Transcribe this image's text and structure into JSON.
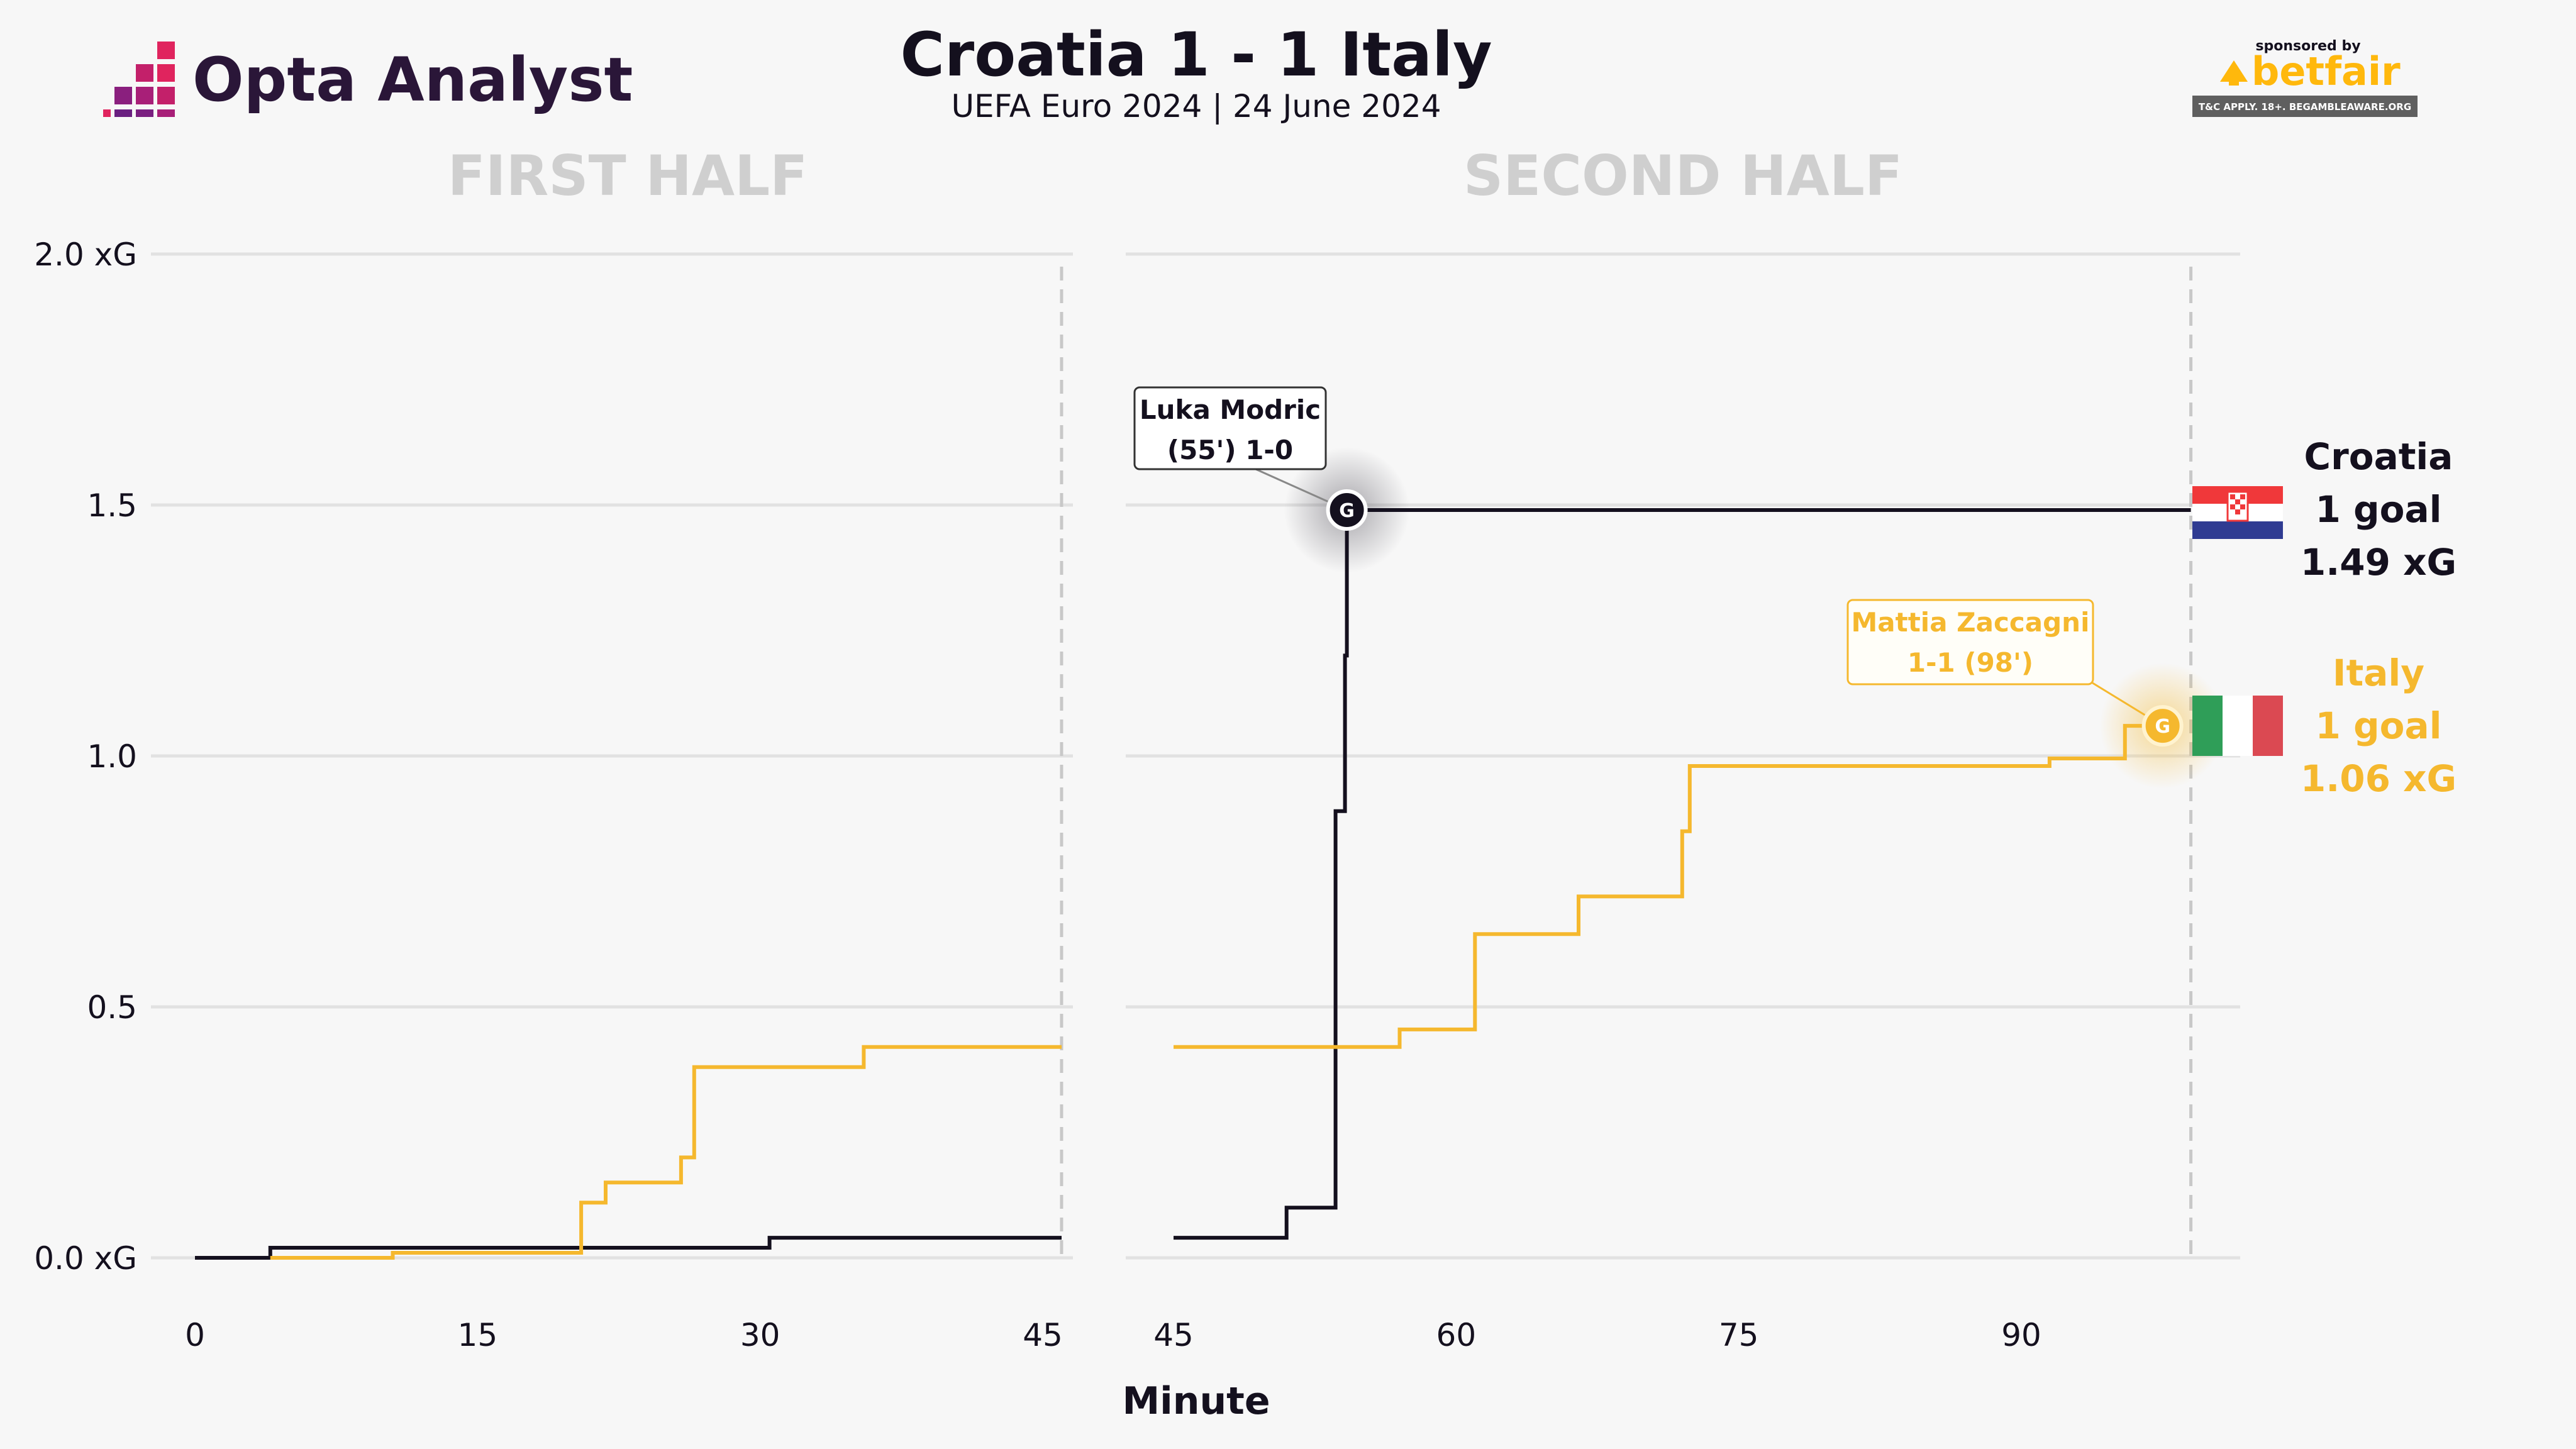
{
  "brand": {
    "name": "Opta Analyst",
    "sponsor_prefix": "sponsored by",
    "sponsor_name": "betfair",
    "sponsor_disclaimer": "T&C APPLY. 18+. BEGAMBLEAWARE.ORG"
  },
  "colors": {
    "background": "#f7f7f7",
    "croatia": "#14101e",
    "italy": "#f5b82e",
    "grid": "#e2e2e2",
    "half_title": "#cfcfcf",
    "brand_pink": "#e0245e",
    "betfair_orange": "#ffb80c"
  },
  "chart_data": {
    "type": "line",
    "step": true,
    "title": "Croatia 1 - 1 Italy",
    "subtitle": "UEFA Euro 2024 | 24 June 2024",
    "xlabel": "Minute",
    "ylabel": "",
    "ylim": [
      0,
      2
    ],
    "yticks": [
      0,
      0.5,
      1.0,
      1.5,
      2.0
    ],
    "ytick_labels": [
      "0.0 xG",
      "0.5",
      "1.0",
      "1.5",
      "2.0 xG"
    ],
    "grid": true,
    "panels": [
      {
        "title": "FIRST HALF",
        "xlim": [
          0,
          46
        ],
        "xticks": [
          0,
          15,
          30,
          45
        ],
        "end_marker": 46
      },
      {
        "title": "SECOND HALF",
        "xlim": [
          45,
          99.5
        ],
        "xticks": [
          45,
          60,
          75,
          90
        ],
        "end_marker": 99
      }
    ],
    "series": [
      {
        "team": "Croatia",
        "color": "#14101e",
        "summary": [
          "Croatia",
          "1 goal",
          "1.49 xG"
        ],
        "first_half": [
          [
            0,
            0.0
          ],
          [
            4,
            0.0
          ],
          [
            4,
            0.02
          ],
          [
            30.5,
            0.02
          ],
          [
            30.5,
            0.04
          ],
          [
            46,
            0.04
          ]
        ],
        "second_half": [
          [
            45,
            0.04
          ],
          [
            51,
            0.04
          ],
          [
            51,
            0.1
          ],
          [
            53.6,
            0.1
          ],
          [
            53.6,
            0.89
          ],
          [
            54.1,
            0.89
          ],
          [
            54.1,
            1.2
          ],
          [
            54.2,
            1.2
          ],
          [
            54.2,
            1.49
          ],
          [
            99,
            1.49
          ]
        ],
        "goals": [
          {
            "minute": 54.2,
            "xg": 1.49,
            "label_lines": [
              "Luka Modric",
              "(55') 1-0"
            ]
          }
        ]
      },
      {
        "team": "Italy",
        "color": "#f5b82e",
        "summary": [
          "Italy",
          "1 goal",
          "1.06 xG"
        ],
        "first_half": [
          [
            4,
            0.0
          ],
          [
            10.5,
            0.0
          ],
          [
            10.5,
            0.01
          ],
          [
            20.5,
            0.01
          ],
          [
            20.5,
            0.11
          ],
          [
            21.8,
            0.11
          ],
          [
            21.8,
            0.15
          ],
          [
            25.8,
            0.15
          ],
          [
            25.8,
            0.2
          ],
          [
            26.5,
            0.2
          ],
          [
            26.5,
            0.38
          ],
          [
            35.5,
            0.38
          ],
          [
            35.5,
            0.42
          ],
          [
            46,
            0.42
          ]
        ],
        "second_half": [
          [
            45,
            0.42
          ],
          [
            57,
            0.42
          ],
          [
            57,
            0.455
          ],
          [
            61,
            0.455
          ],
          [
            61,
            0.645
          ],
          [
            66.5,
            0.645
          ],
          [
            66.5,
            0.72
          ],
          [
            72,
            0.72
          ],
          [
            72,
            0.85
          ],
          [
            72.4,
            0.85
          ],
          [
            72.4,
            0.98
          ],
          [
            91.5,
            0.98
          ],
          [
            91.5,
            0.995
          ],
          [
            95.5,
            0.995
          ],
          [
            95.5,
            1.06
          ],
          [
            97.5,
            1.06
          ]
        ],
        "goals": [
          {
            "minute": 97.5,
            "xg": 1.06,
            "label_lines": [
              "Mattia Zaccagni",
              "1-1 (98')"
            ]
          }
        ]
      }
    ]
  }
}
